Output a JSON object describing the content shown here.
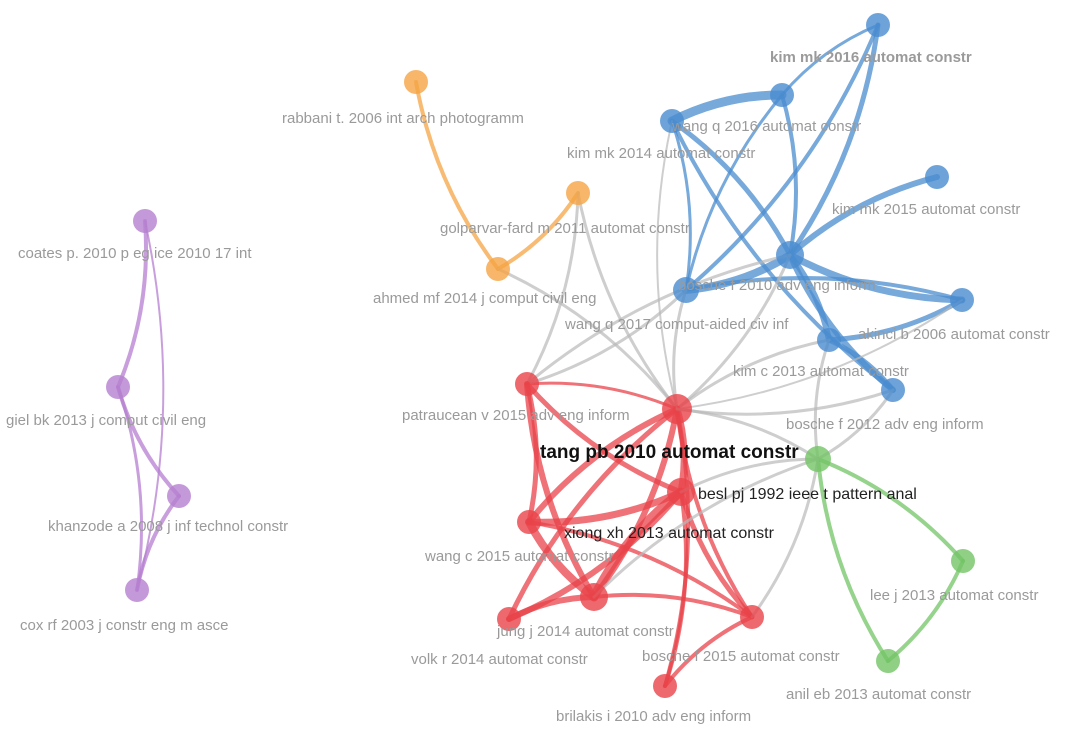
{
  "clusters": {
    "purple": "#b57fd0",
    "orange": "#f5a444",
    "blue": "#4a8ccf",
    "red": "#e8434a",
    "green": "#73c466",
    "gray": "#b9b9b9"
  },
  "nodes": [
    {
      "id": "coates",
      "label": "coates p. 2010 p eg ice 2010 17 int",
      "cluster": "purple"
    },
    {
      "id": "giel",
      "label": "giel bk 2013 j comput civil eng",
      "cluster": "purple"
    },
    {
      "id": "khanzode",
      "label": "khanzode a 2008 j inf technol constr",
      "cluster": "purple"
    },
    {
      "id": "cox",
      "label": "cox rf 2003 j constr eng m asce",
      "cluster": "purple"
    },
    {
      "id": "rabbani",
      "label": "rabbani t. 2006 int arch photogramm",
      "cluster": "orange"
    },
    {
      "id": "golparvar",
      "label": "golparvar-fard m 2011 automat constr",
      "cluster": "orange"
    },
    {
      "id": "ahmed",
      "label": "ahmed mf 2014 j comput civil eng",
      "cluster": "orange"
    },
    {
      "id": "kim2016",
      "label": "kim mk 2016 automat constr",
      "cluster": "blue"
    },
    {
      "id": "wangq2016",
      "label": "wang q 2016 automat constr",
      "cluster": "blue"
    },
    {
      "id": "kim2014",
      "label": "kim mk 2014 automat constr",
      "cluster": "blue"
    },
    {
      "id": "kim2015",
      "label": "kim mk 2015 automat constr",
      "cluster": "blue"
    },
    {
      "id": "bosche2010",
      "label": "bosche f 2010 adv eng inform",
      "cluster": "blue"
    },
    {
      "id": "wangq2017",
      "label": "wang q 2017 comput-aided civ inf",
      "cluster": "blue"
    },
    {
      "id": "akinci",
      "label": "akinci b 2006 automat constr",
      "cluster": "blue"
    },
    {
      "id": "kimc",
      "label": "kim c 2013 automat constr",
      "cluster": "blue"
    },
    {
      "id": "bosche2012",
      "label": "bosche f 2012 adv eng inform",
      "cluster": "blue"
    },
    {
      "id": "patraucean",
      "label": "patraucean v 2015 adv eng inform",
      "cluster": "red"
    },
    {
      "id": "tang",
      "label": "tang pb 2010 automat constr",
      "cluster": "red"
    },
    {
      "id": "xiong",
      "label": "xiong xh 2013 automat constr",
      "cluster": "red"
    },
    {
      "id": "wangc",
      "label": "wang c 2015 automat constr",
      "cluster": "red"
    },
    {
      "id": "jung",
      "label": "jung j 2014 automat constr",
      "cluster": "red"
    },
    {
      "id": "volk",
      "label": "volk r 2014 automat constr",
      "cluster": "red"
    },
    {
      "id": "bosche2015",
      "label": "bosche f 2015 automat constr",
      "cluster": "red"
    },
    {
      "id": "brilakis",
      "label": "brilakis i 2010 adv eng inform",
      "cluster": "red"
    },
    {
      "id": "besl",
      "label": "besl pj 1992 ieee t pattern anal",
      "cluster": "green"
    },
    {
      "id": "leej",
      "label": "lee j 2013 automat constr",
      "cluster": "green"
    },
    {
      "id": "anil",
      "label": "anil eb 2013 automat constr",
      "cluster": "green"
    }
  ],
  "edges": [
    [
      "coates",
      "giel",
      4
    ],
    [
      "giel",
      "khanzode",
      4
    ],
    [
      "giel",
      "cox",
      3
    ],
    [
      "khanzode",
      "cox",
      4
    ],
    [
      "coates",
      "cox",
      2
    ],
    [
      "rabbani",
      "ahmed",
      4
    ],
    [
      "golparvar",
      "ahmed",
      4
    ],
    [
      "golparvar",
      "tang",
      3
    ],
    [
      "ahmed",
      "tang",
      3
    ],
    [
      "patraucean",
      "golparvar",
      3
    ],
    [
      "kim2016",
      "bosche2010",
      5
    ],
    [
      "kim2016",
      "wangq2016",
      3
    ],
    [
      "kim2016",
      "wangq2017",
      4
    ],
    [
      "wangq2016",
      "kim2014",
      9
    ],
    [
      "wangq2016",
      "bosche2010",
      4
    ],
    [
      "wangq2016",
      "wangq2017",
      3
    ],
    [
      "kim2014",
      "bosche2010",
      5
    ],
    [
      "kim2014",
      "bosche2012",
      4
    ],
    [
      "kim2014",
      "wangq2017",
      3
    ],
    [
      "kim2015",
      "bosche2010",
      6
    ],
    [
      "bosche2010",
      "wangq2017",
      8
    ],
    [
      "bosche2010",
      "akinci",
      7
    ],
    [
      "bosche2010",
      "kimc",
      6
    ],
    [
      "bosche2010",
      "bosche2012",
      6
    ],
    [
      "akinci",
      "kimc",
      5
    ],
    [
      "akinci",
      "wangq2017",
      4
    ],
    [
      "kimc",
      "bosche2012",
      5
    ],
    [
      "wangq2017",
      "tang",
      3
    ],
    [
      "bosche2010",
      "tang",
      3
    ],
    [
      "kimc",
      "tang",
      3
    ],
    [
      "patraucean",
      "tang",
      3
    ],
    [
      "patraucean",
      "wangq2017",
      3
    ],
    [
      "patraucean",
      "bosche2010",
      3
    ],
    [
      "patraucean",
      "jung",
      6
    ],
    [
      "patraucean",
      "wangc",
      5
    ],
    [
      "patraucean",
      "xiong",
      5
    ],
    [
      "tang",
      "xiong",
      7
    ],
    [
      "tang",
      "wangc",
      6
    ],
    [
      "tang",
      "jung",
      6
    ],
    [
      "tang",
      "volk",
      5
    ],
    [
      "tang",
      "brilakis",
      4
    ],
    [
      "tang",
      "bosche2015",
      4
    ],
    [
      "xiong",
      "wangc",
      7
    ],
    [
      "xiong",
      "jung",
      9
    ],
    [
      "xiong",
      "volk",
      6
    ],
    [
      "xiong",
      "bosche2015",
      5
    ],
    [
      "xiong",
      "brilakis",
      4
    ],
    [
      "wangc",
      "jung",
      8
    ],
    [
      "wangc",
      "bosche2015",
      4
    ],
    [
      "jung",
      "volk",
      6
    ],
    [
      "jung",
      "bosche2015",
      4
    ],
    [
      "bosche2015",
      "brilakis",
      4
    ],
    [
      "tang",
      "besl",
      3
    ],
    [
      "tang",
      "bosche2012",
      3
    ],
    [
      "tang",
      "kim2014",
      2
    ],
    [
      "tang",
      "akinci",
      2
    ],
    [
      "besl",
      "leej",
      4
    ],
    [
      "besl",
      "anil",
      4
    ],
    [
      "leej",
      "anil",
      4
    ],
    [
      "besl",
      "bosche2012",
      3
    ],
    [
      "besl",
      "kimc",
      3
    ],
    [
      "besl",
      "jung",
      3
    ],
    [
      "besl",
      "bosche2015",
      3
    ],
    [
      "besl",
      "xiong",
      3
    ]
  ]
}
